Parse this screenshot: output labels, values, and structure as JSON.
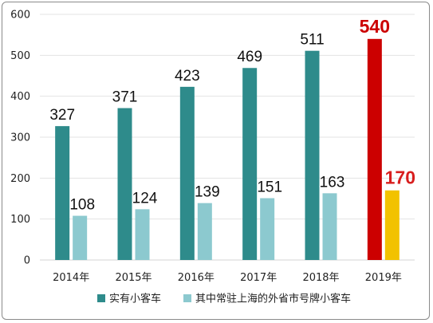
{
  "chart_data": {
    "type": "bar",
    "categories": [
      "2014年",
      "2015年",
      "2016年",
      "2017年",
      "2018年",
      "2019年"
    ],
    "series": [
      {
        "name": "实有小客车",
        "values": [
          327,
          371,
          423,
          469,
          511,
          540
        ],
        "color": "#2e8b8b",
        "highlight_color": "#cc0000"
      },
      {
        "name": "其中常驻上海的外省市号牌小客车",
        "values": [
          108,
          124,
          139,
          151,
          163,
          170
        ],
        "color": "#8cc9cf",
        "highlight_color": "#f2c200"
      }
    ],
    "highlight_index": 5,
    "ylim": [
      0,
      600
    ],
    "yticks": [
      0,
      100,
      200,
      300,
      400,
      500,
      600
    ],
    "grid": true,
    "legend_position": "bottom",
    "title": "",
    "xlabel": "",
    "ylabel": ""
  }
}
